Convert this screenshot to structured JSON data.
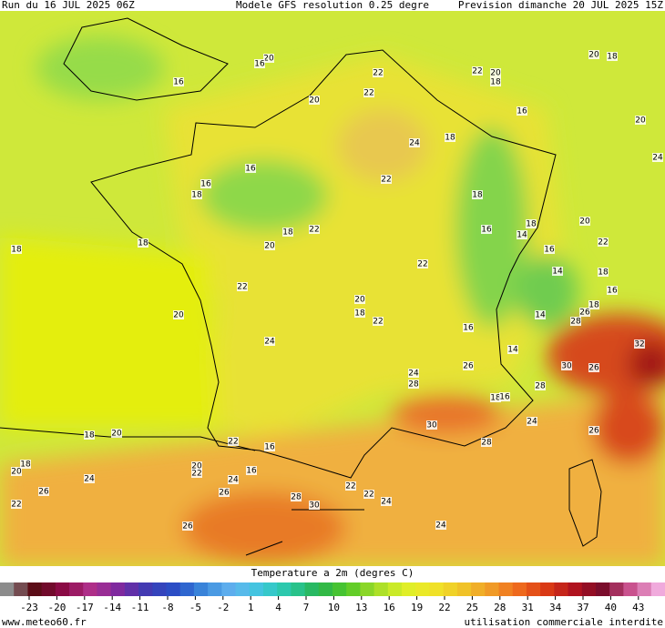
{
  "header": {
    "run": "Run du 16 JUL 2025 06Z",
    "model": "Modele GFS resolution 0.25 degre",
    "forecast": "Prevision dimanche 20 JUL 2025 15Z"
  },
  "map": {
    "contour_labels": [
      20,
      16,
      16,
      22,
      22,
      20,
      22,
      20,
      18,
      20,
      18,
      16,
      20,
      24,
      18,
      24,
      16,
      16,
      18,
      22,
      18,
      18,
      18,
      18,
      22,
      20,
      16,
      14,
      18,
      20,
      22,
      16,
      22,
      14,
      18,
      16,
      22,
      20,
      20,
      18,
      22,
      18,
      26,
      28,
      14,
      16,
      24,
      14,
      32,
      30,
      26,
      24,
      26,
      28,
      28,
      18,
      16,
      24,
      26,
      30,
      18,
      20,
      22,
      16,
      28,
      18,
      20,
      20,
      22,
      24,
      24,
      16,
      26,
      26,
      28,
      30,
      22,
      22,
      24,
      22,
      26,
      24
    ]
  },
  "legend": {
    "title": "Temperature a 2m (degres C)",
    "ticks": [
      -23,
      -20,
      -17,
      -14,
      -11,
      -8,
      -5,
      -2,
      1,
      4,
      7,
      10,
      13,
      16,
      19,
      22,
      25,
      28,
      31,
      34,
      37,
      40,
      43
    ]
  },
  "footer": {
    "site": "www.meteo60.fr",
    "notice": "utilisation commerciale interdite"
  }
}
